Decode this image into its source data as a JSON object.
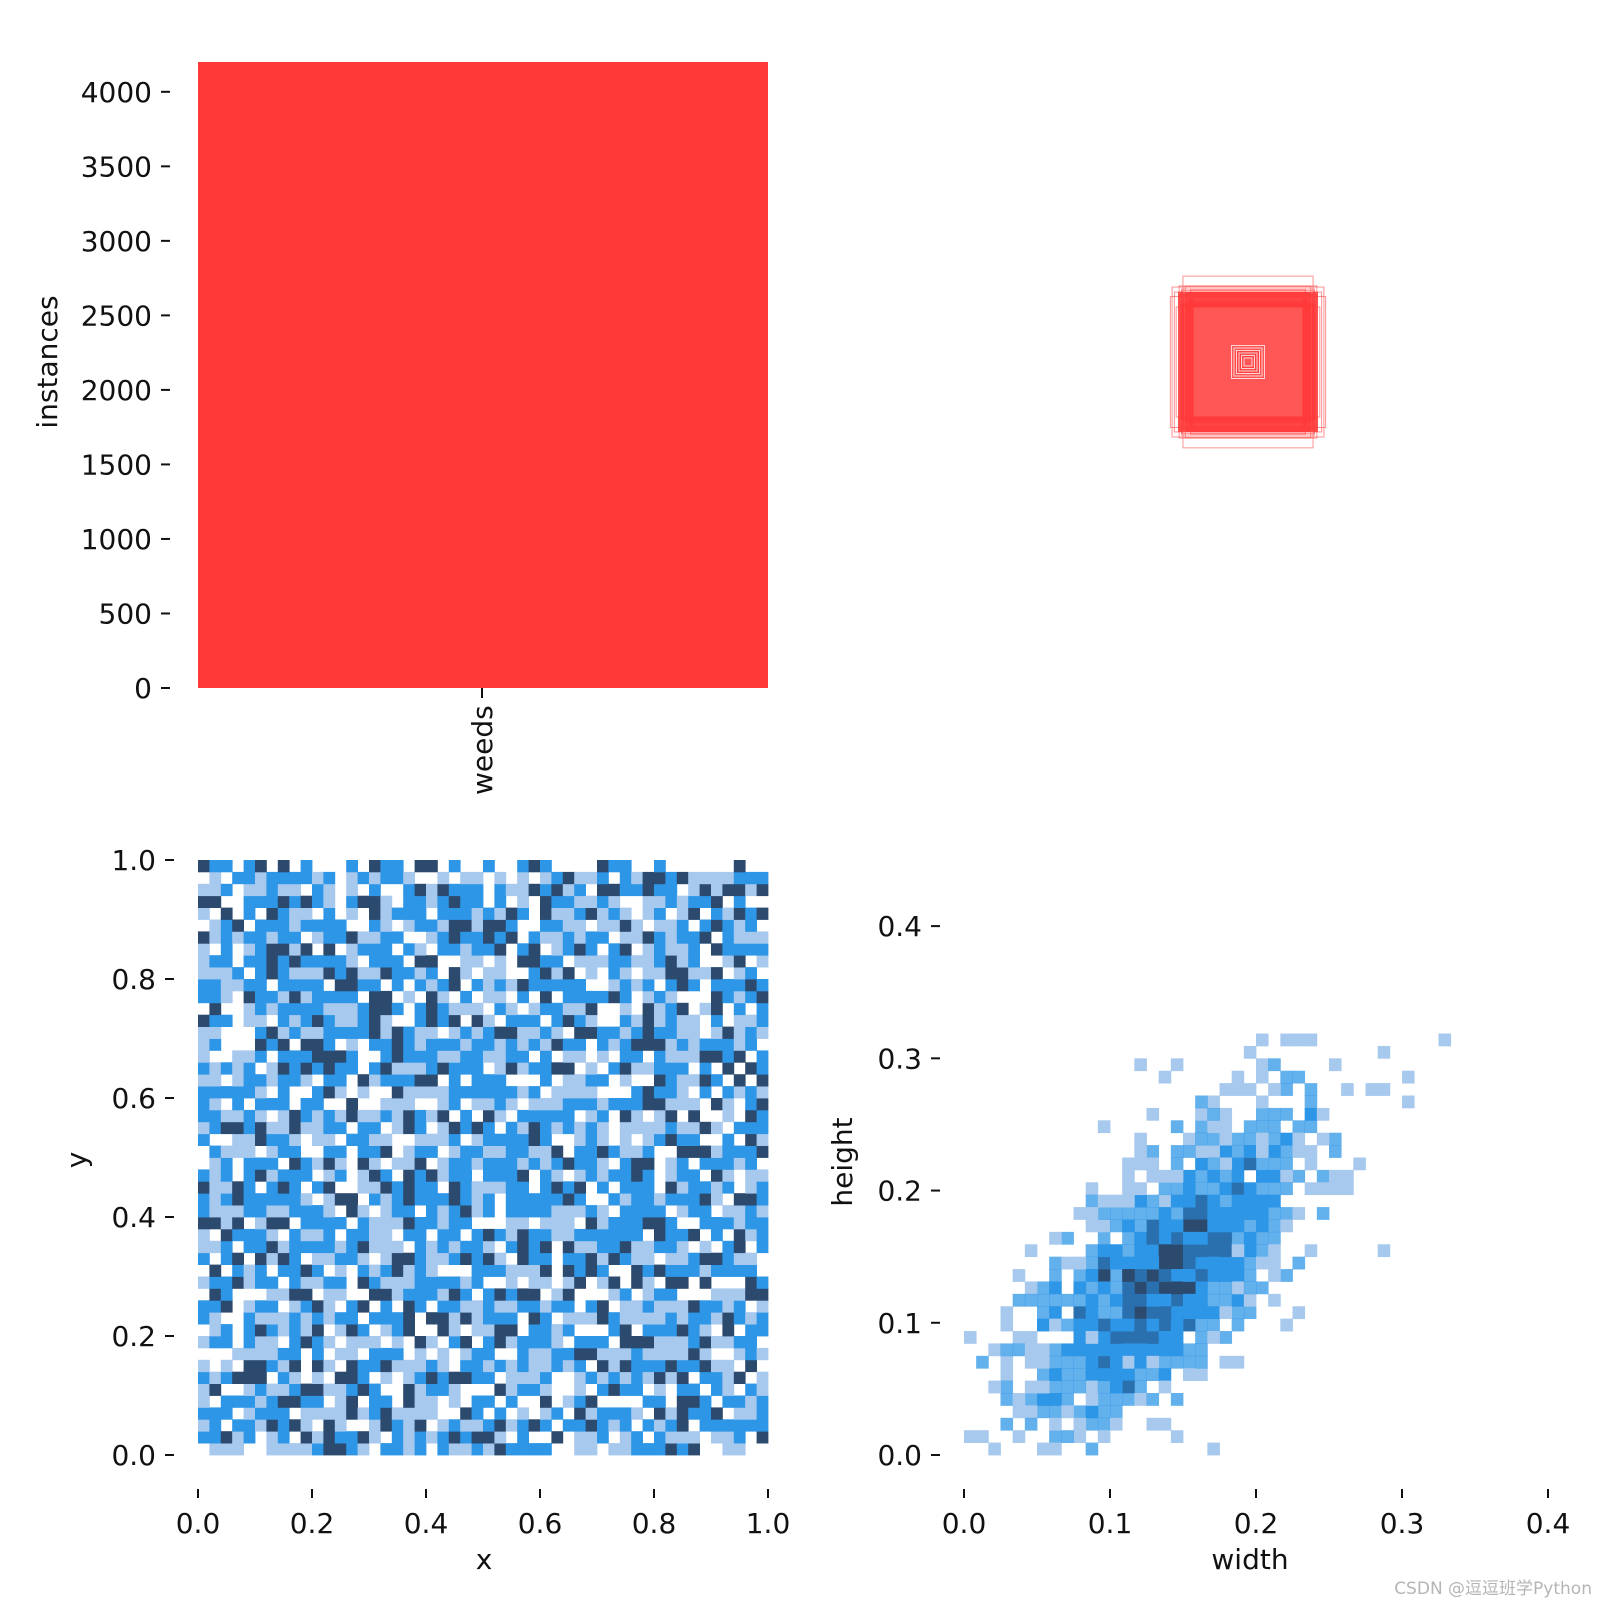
{
  "colors": {
    "bar": "#ff3838",
    "box_stroke": "#ff3838",
    "heat_light": "#a8c9ee",
    "heat_mid": "#2d96e6",
    "heat_dark": "#2c4a6e",
    "axis": "#111111"
  },
  "chart_data": [
    {
      "type": "bar",
      "categories": [
        "weeds"
      ],
      "values": [
        4200
      ],
      "ylabel": "instances",
      "ylim": [
        0,
        4200
      ],
      "yticks": [
        "0",
        "500",
        "1000",
        "1500",
        "2000",
        "2500",
        "3000",
        "3500",
        "4000"
      ],
      "grid": false
    },
    {
      "type": "scatter",
      "description_kind": "overlaid bounding boxes (no axes)",
      "box_count_drawn": 60,
      "center": [
        0.5,
        0.5
      ],
      "max_wh": [
        0.4,
        0.45
      ]
    },
    {
      "type": "heatmap",
      "xlabel": "x",
      "ylabel": "y",
      "xlim": [
        0.0,
        1.0
      ],
      "ylim": [
        0.0,
        1.0
      ],
      "xticks": [
        "0.0",
        "0.2",
        "0.4",
        "0.6",
        "0.8",
        "1.0"
      ],
      "yticks": [
        "0.0",
        "0.2",
        "0.4",
        "0.6",
        "0.8",
        "1.0"
      ],
      "bins": [
        50,
        50
      ],
      "distribution": "uniform"
    },
    {
      "type": "heatmap",
      "xlabel": "width",
      "ylabel": "height",
      "xlim": [
        0.0,
        0.4
      ],
      "ylim": [
        0.0,
        0.45
      ],
      "xticks": [
        "0.0",
        "0.1",
        "0.2",
        "0.3",
        "0.4"
      ],
      "yticks": [
        "0.0",
        "0.1",
        "0.2",
        "0.3",
        "0.4"
      ],
      "bins": [
        50,
        50
      ],
      "distribution": "clustered",
      "peak": [
        0.14,
        0.14
      ]
    }
  ],
  "watermark": "CSDN @逗逗班学Python"
}
